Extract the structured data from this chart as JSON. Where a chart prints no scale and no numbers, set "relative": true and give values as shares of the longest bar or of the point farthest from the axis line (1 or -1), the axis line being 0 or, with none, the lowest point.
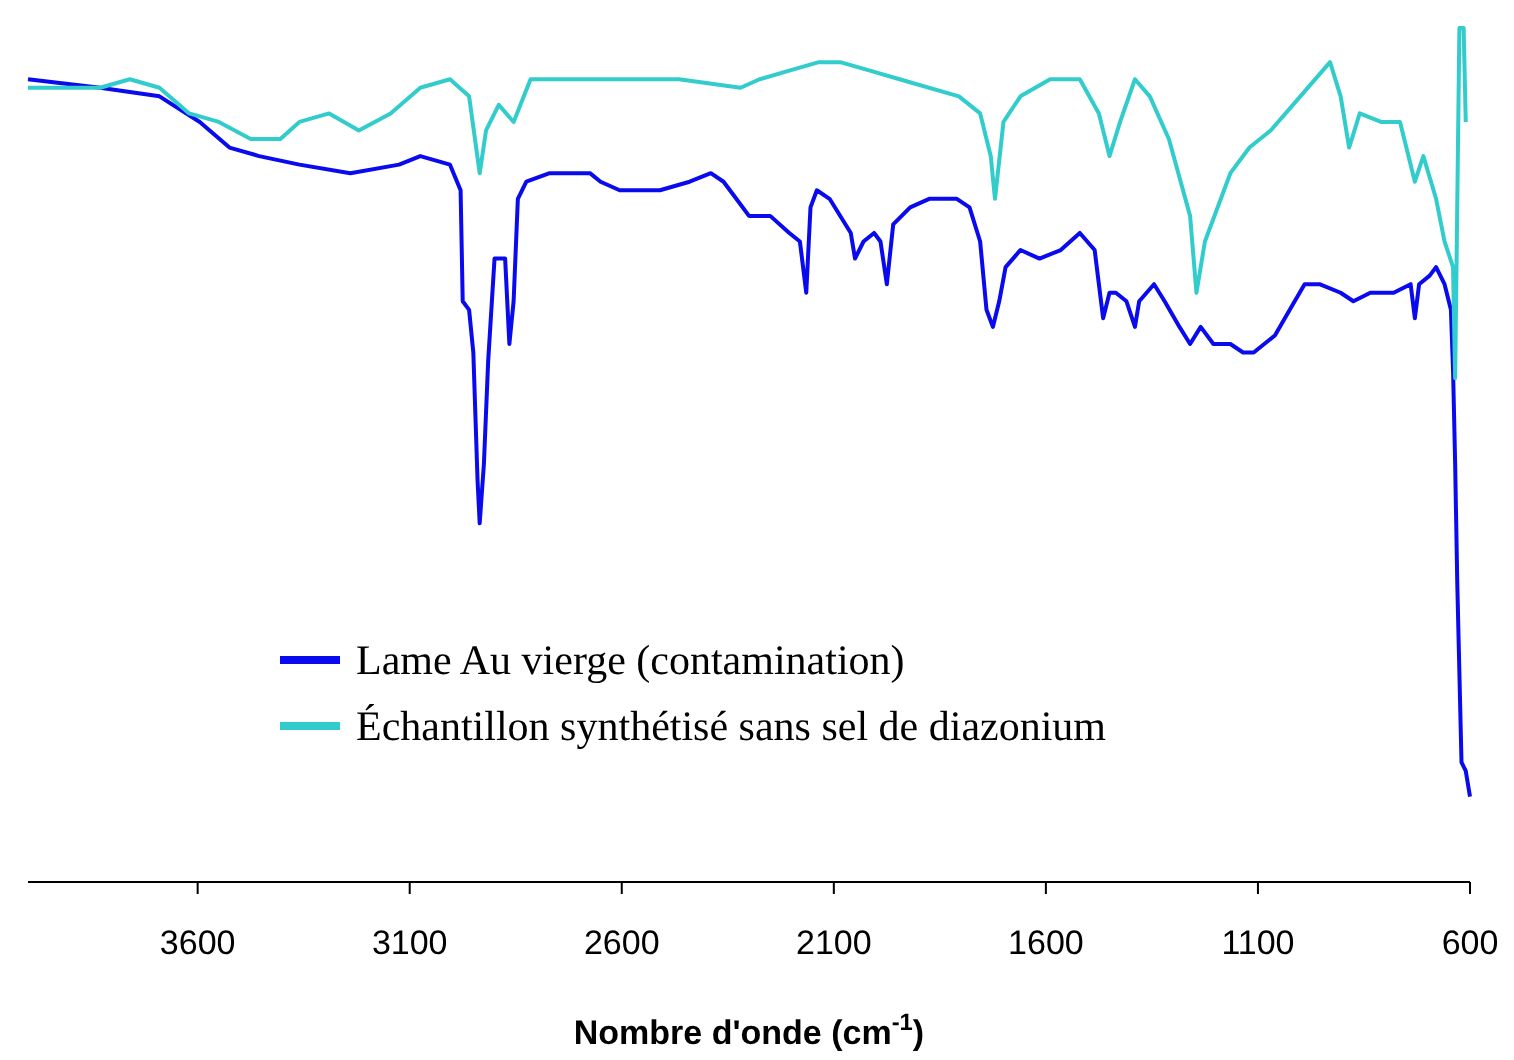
{
  "chart_data": {
    "type": "line",
    "relative": true,
    "xlabel": "Nombre d'onde (cm$^{-1}$)",
    "xlim": [
      4000,
      600
    ],
    "xticks": [
      3600,
      3100,
      2600,
      2100,
      1600,
      1100,
      600
    ],
    "legend": "bottom",
    "grid": false,
    "marker": "none",
    "line_style": "solid",
    "series": [
      {
        "name": "Lame Au vierge (contamination)",
        "color": "#0a0aee",
        "x": [
          4000,
          3830,
          3690,
          3595,
          3525,
          3455,
          3360,
          3240,
          3125,
          3075,
          3005,
          2980,
          2975,
          2960,
          2950,
          2940,
          2935,
          2925,
          2915,
          2900,
          2890,
          2875,
          2865,
          2855,
          2845,
          2825,
          2770,
          2675,
          2650,
          2605,
          2510,
          2440,
          2390,
          2360,
          2330,
          2300,
          2250,
          2205,
          2180,
          2165,
          2155,
          2140,
          2110,
          2060,
          2050,
          2030,
          2005,
          1990,
          1975,
          1960,
          1920,
          1875,
          1810,
          1780,
          1755,
          1740,
          1725,
          1710,
          1695,
          1660,
          1615,
          1565,
          1520,
          1485,
          1475,
          1465,
          1450,
          1435,
          1410,
          1390,
          1380,
          1345,
          1320,
          1285,
          1260,
          1235,
          1205,
          1165,
          1135,
          1110,
          1060,
          1025,
          990,
          955,
          905,
          875,
          835,
          780,
          740,
          730,
          720,
          695,
          680,
          660,
          645,
          640,
          635,
          630,
          620,
          610,
          600
        ],
        "values": [
          0.94,
          0.93,
          0.92,
          0.89,
          0.86,
          0.85,
          0.84,
          0.83,
          0.84,
          0.85,
          0.84,
          0.81,
          0.68,
          0.67,
          0.62,
          0.47,
          0.42,
          0.49,
          0.61,
          0.73,
          0.73,
          0.73,
          0.63,
          0.68,
          0.8,
          0.82,
          0.83,
          0.83,
          0.82,
          0.81,
          0.81,
          0.82,
          0.83,
          0.82,
          0.8,
          0.78,
          0.78,
          0.76,
          0.75,
          0.69,
          0.79,
          0.81,
          0.8,
          0.76,
          0.73,
          0.75,
          0.76,
          0.75,
          0.7,
          0.77,
          0.79,
          0.8,
          0.8,
          0.79,
          0.75,
          0.67,
          0.65,
          0.68,
          0.72,
          0.74,
          0.73,
          0.74,
          0.76,
          0.74,
          0.7,
          0.66,
          0.69,
          0.69,
          0.68,
          0.65,
          0.68,
          0.7,
          0.68,
          0.65,
          0.63,
          0.65,
          0.63,
          0.63,
          0.62,
          0.62,
          0.64,
          0.67,
          0.7,
          0.7,
          0.69,
          0.68,
          0.69,
          0.69,
          0.7,
          0.66,
          0.7,
          0.71,
          0.72,
          0.7,
          0.67,
          0.6,
          0.49,
          0.35,
          0.14,
          0.13,
          0.1
        ]
      },
      {
        "name": "Échantillon synthétisé sans sel de diazonium",
        "color": "#33cccc",
        "x": [
          4000,
          3925,
          3830,
          3760,
          3690,
          3620,
          3550,
          3475,
          3405,
          3360,
          3290,
          3220,
          3145,
          3075,
          3005,
          2960,
          2935,
          2920,
          2890,
          2855,
          2815,
          2700,
          2605,
          2465,
          2320,
          2275,
          2205,
          2135,
          2085,
          2015,
          1945,
          1805,
          1755,
          1730,
          1720,
          1700,
          1660,
          1590,
          1520,
          1475,
          1450,
          1425,
          1390,
          1355,
          1310,
          1260,
          1245,
          1225,
          1165,
          1120,
          1070,
          1000,
          930,
          905,
          885,
          860,
          810,
          765,
          730,
          710,
          680,
          660,
          640,
          635,
          625,
          615,
          610
        ],
        "values": [
          0.93,
          0.93,
          0.93,
          0.94,
          0.93,
          0.9,
          0.89,
          0.87,
          0.87,
          0.89,
          0.9,
          0.88,
          0.9,
          0.93,
          0.94,
          0.92,
          0.83,
          0.88,
          0.91,
          0.89,
          0.94,
          0.94,
          0.94,
          0.94,
          0.93,
          0.94,
          0.95,
          0.96,
          0.96,
          0.95,
          0.94,
          0.92,
          0.9,
          0.85,
          0.8,
          0.89,
          0.92,
          0.94,
          0.94,
          0.9,
          0.85,
          0.89,
          0.94,
          0.92,
          0.87,
          0.78,
          0.69,
          0.75,
          0.83,
          0.86,
          0.88,
          0.92,
          0.96,
          0.92,
          0.86,
          0.9,
          0.89,
          0.89,
          0.82,
          0.85,
          0.8,
          0.75,
          0.72,
          0.59,
          1.0,
          1.0,
          0.89
        ]
      }
    ]
  }
}
